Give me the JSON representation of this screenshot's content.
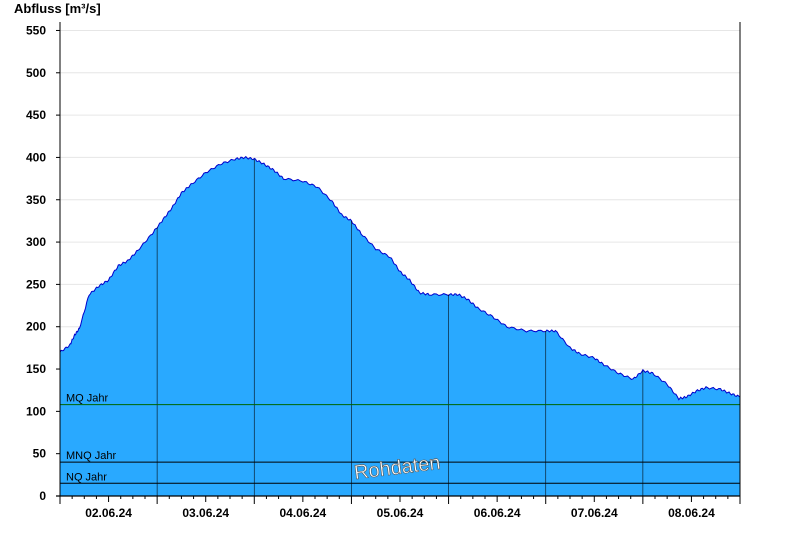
{
  "chart_data": {
    "type": "area",
    "ylabel": "Abfluss [m³/s]",
    "ylim": [
      0,
      560
    ],
    "yticks": [
      0,
      50,
      100,
      150,
      200,
      250,
      300,
      350,
      400,
      450,
      500,
      550
    ],
    "xlim": [
      0,
      7
    ],
    "day_boundaries": [
      1,
      2,
      3,
      4,
      5,
      6
    ],
    "date_labels": [
      {
        "label": "02.06.24",
        "x": 0.5
      },
      {
        "label": "03.06.24",
        "x": 1.5
      },
      {
        "label": "04.06.24",
        "x": 2.5
      },
      {
        "label": "05.06.24",
        "x": 3.5
      },
      {
        "label": "06.06.24",
        "x": 4.5
      },
      {
        "label": "07.06.24",
        "x": 5.5
      },
      {
        "label": "08.06.24",
        "x": 6.5
      }
    ],
    "series": [
      {
        "name": "",
        "color": "#29a9ff",
        "line_color": "#0000cc",
        "points": [
          [
            0.0,
            170
          ],
          [
            0.1,
            178
          ],
          [
            0.15,
            190
          ],
          [
            0.2,
            198
          ],
          [
            0.3,
            238
          ],
          [
            0.4,
            248
          ],
          [
            0.5,
            255
          ],
          [
            0.6,
            272
          ],
          [
            0.7,
            278
          ],
          [
            0.8,
            290
          ],
          [
            0.95,
            310
          ],
          [
            1.05,
            325
          ],
          [
            1.15,
            340
          ],
          [
            1.25,
            358
          ],
          [
            1.35,
            368
          ],
          [
            1.5,
            382
          ],
          [
            1.65,
            392
          ],
          [
            1.8,
            398
          ],
          [
            1.9,
            400
          ],
          [
            2.0,
            398
          ],
          [
            2.1,
            392
          ],
          [
            2.2,
            385
          ],
          [
            2.3,
            375
          ],
          [
            2.5,
            372
          ],
          [
            2.65,
            365
          ],
          [
            2.8,
            348
          ],
          [
            2.9,
            332
          ],
          [
            3.0,
            325
          ],
          [
            3.1,
            310
          ],
          [
            3.25,
            292
          ],
          [
            3.4,
            282
          ],
          [
            3.5,
            265
          ],
          [
            3.6,
            255
          ],
          [
            3.7,
            240
          ],
          [
            3.8,
            238
          ],
          [
            4.0,
            238
          ],
          [
            4.1,
            238
          ],
          [
            4.2,
            232
          ],
          [
            4.3,
            222
          ],
          [
            4.45,
            212
          ],
          [
            4.6,
            200
          ],
          [
            4.8,
            195
          ],
          [
            5.0,
            195
          ],
          [
            5.1,
            195
          ],
          [
            5.25,
            175
          ],
          [
            5.35,
            168
          ],
          [
            5.5,
            163
          ],
          [
            5.6,
            155
          ],
          [
            5.75,
            145
          ],
          [
            5.9,
            138
          ],
          [
            6.0,
            148
          ],
          [
            6.1,
            145
          ],
          [
            6.25,
            132
          ],
          [
            6.37,
            115
          ],
          [
            6.45,
            117
          ],
          [
            6.55,
            124
          ],
          [
            6.65,
            128
          ],
          [
            6.8,
            126
          ],
          [
            6.9,
            121
          ],
          [
            7.0,
            117
          ]
        ]
      }
    ],
    "reference_lines": [
      {
        "label": "MQ Jahr",
        "value": 108,
        "color": "#006600"
      },
      {
        "label": "MNQ Jahr",
        "value": 40,
        "color": "#000000"
      },
      {
        "label": "NQ Jahr",
        "value": 15,
        "color": "#000000"
      }
    ],
    "watermark": "Rohdaten",
    "grid": true
  }
}
